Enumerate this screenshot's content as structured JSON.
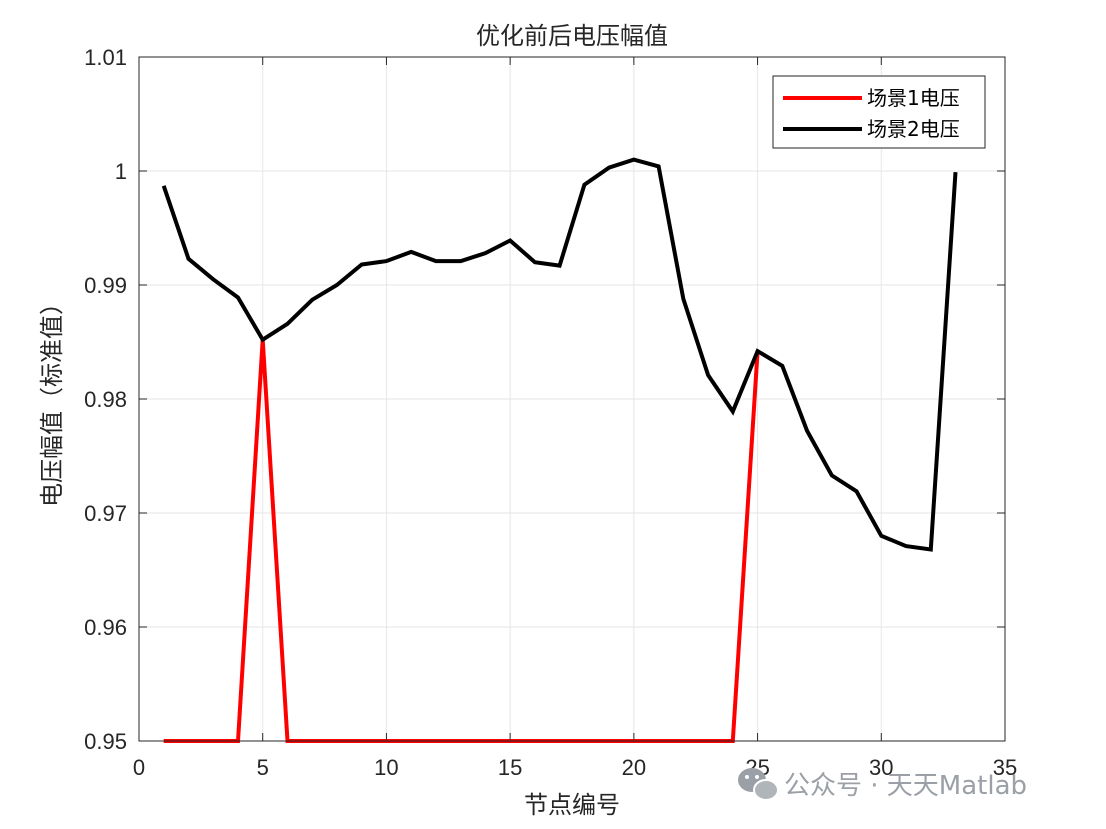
{
  "chart_data": {
    "type": "line",
    "title": "优化前后电压幅值",
    "xlabel": "节点编号",
    "ylabel": "电压幅值（标准值）",
    "xlim": [
      0,
      35
    ],
    "ylim": [
      0.95,
      1.01
    ],
    "xticks": [
      "0",
      "5",
      "10",
      "15",
      "20",
      "25",
      "30",
      "35"
    ],
    "yticks": [
      "0.95",
      "0.96",
      "0.97",
      "0.98",
      "0.99",
      "1",
      "1.01"
    ],
    "grid": true,
    "legend_position": "top-right",
    "x": [
      1,
      2,
      3,
      4,
      5,
      6,
      7,
      8,
      9,
      10,
      11,
      12,
      13,
      14,
      15,
      16,
      17,
      18,
      19,
      20,
      21,
      22,
      23,
      24,
      25,
      26,
      27,
      28,
      29,
      30,
      31,
      32,
      33
    ],
    "series": [
      {
        "name": "场景1电压",
        "color": "#ff0000",
        "values": [
          0.95,
          0.95,
          0.95,
          0.95,
          0.9852,
          0.95,
          0.95,
          0.95,
          0.95,
          0.95,
          0.95,
          0.95,
          0.95,
          0.95,
          0.95,
          0.95,
          0.95,
          0.95,
          0.95,
          0.95,
          0.95,
          0.95,
          0.95,
          0.95,
          0.9842,
          null,
          null,
          null,
          null,
          null,
          null,
          null,
          null
        ]
      },
      {
        "name": "场景2电压",
        "color": "#000000",
        "values": [
          0.9987,
          0.9923,
          0.9905,
          0.9889,
          0.9852,
          0.9866,
          0.9887,
          0.99,
          0.9918,
          0.9921,
          0.9929,
          0.9921,
          0.9921,
          0.9928,
          0.9939,
          0.992,
          0.9917,
          0.9988,
          1.0003,
          1.001,
          1.0004,
          0.9888,
          0.9821,
          0.9789,
          0.9842,
          0.9829,
          0.9772,
          0.9733,
          0.9719,
          0.968,
          0.9671,
          0.9668,
          0.9999
        ]
      }
    ]
  },
  "watermark": {
    "icon": "wechat-icon",
    "text": "公众号 · 天天Matlab"
  }
}
